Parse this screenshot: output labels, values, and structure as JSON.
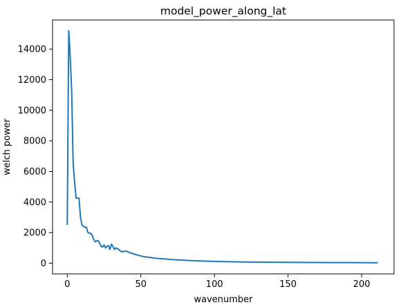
{
  "chart_data": {
    "type": "line",
    "title": "model_power_along_lat",
    "xlabel": "wavenumber",
    "ylabel": "welch power",
    "xlim": [
      -10,
      222
    ],
    "ylim": [
      -700,
      15900
    ],
    "xticks": [
      0,
      50,
      100,
      150,
      200
    ],
    "yticks": [
      0,
      2000,
      4000,
      6000,
      8000,
      10000,
      12000,
      14000
    ],
    "grid": false,
    "legend": "none",
    "series": [
      {
        "color": "#1f77b4",
        "points": [
          [
            0,
            2500
          ],
          [
            1,
            15200
          ],
          [
            2,
            13500
          ],
          [
            3,
            11300
          ],
          [
            4,
            6500
          ],
          [
            5,
            5300
          ],
          [
            6,
            4250
          ],
          [
            7,
            4250
          ],
          [
            8,
            4250
          ],
          [
            9,
            3000
          ],
          [
            10,
            2500
          ],
          [
            11,
            2400
          ],
          [
            12,
            2350
          ],
          [
            13,
            2350
          ],
          [
            14,
            2000
          ],
          [
            15,
            1950
          ],
          [
            16,
            1950
          ],
          [
            17,
            1800
          ],
          [
            18,
            1550
          ],
          [
            19,
            1400
          ],
          [
            20,
            1450
          ],
          [
            21,
            1480
          ],
          [
            22,
            1300
          ],
          [
            23,
            1100
          ],
          [
            24,
            1050
          ],
          [
            25,
            1200
          ],
          [
            26,
            1000
          ],
          [
            27,
            1100
          ],
          [
            28,
            1150
          ],
          [
            29,
            900
          ],
          [
            30,
            1250
          ],
          [
            31,
            1100
          ],
          [
            32,
            900
          ],
          [
            33,
            1000
          ],
          [
            34,
            950
          ],
          [
            35,
            900
          ],
          [
            36,
            800
          ],
          [
            37,
            750
          ],
          [
            38,
            780
          ],
          [
            39,
            760
          ],
          [
            40,
            800
          ],
          [
            42,
            700
          ],
          [
            44,
            640
          ],
          [
            46,
            580
          ],
          [
            48,
            520
          ],
          [
            50,
            470
          ],
          [
            52,
            430
          ],
          [
            55,
            390
          ],
          [
            58,
            350
          ],
          [
            60,
            320
          ],
          [
            63,
            300
          ],
          [
            66,
            280
          ],
          [
            69,
            250
          ],
          [
            72,
            230
          ],
          [
            75,
            215
          ],
          [
            78,
            200
          ],
          [
            82,
            180
          ],
          [
            86,
            160
          ],
          [
            90,
            150
          ],
          [
            95,
            130
          ],
          [
            100,
            115
          ],
          [
            110,
            95
          ],
          [
            120,
            80
          ],
          [
            130,
            70
          ],
          [
            140,
            60
          ],
          [
            150,
            55
          ],
          [
            160,
            48
          ],
          [
            170,
            44
          ],
          [
            180,
            40
          ],
          [
            190,
            37
          ],
          [
            200,
            34
          ],
          [
            211,
            30
          ]
        ]
      }
    ]
  }
}
